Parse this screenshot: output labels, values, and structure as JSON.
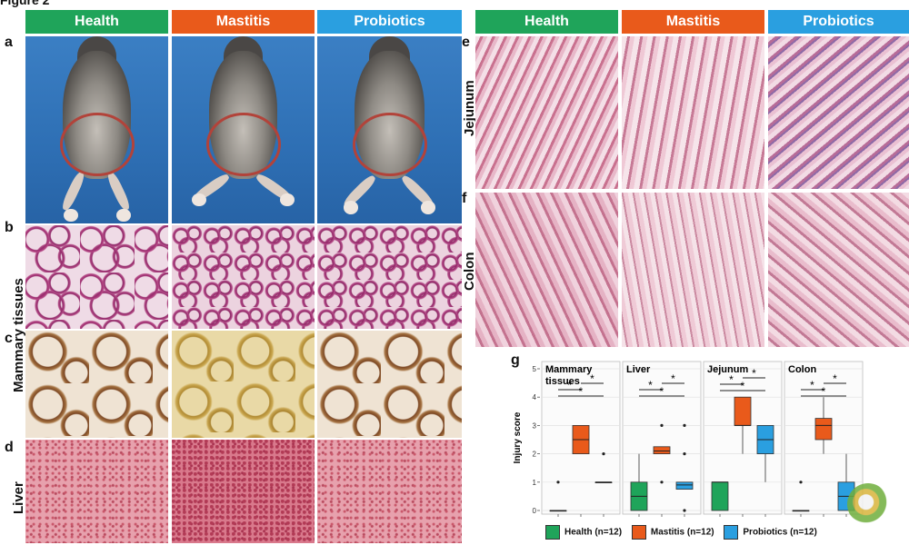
{
  "figure_title": "Figure 2",
  "columns": {
    "health": "Health",
    "mastitis": "Mastitis",
    "probiotics": "Probiotics"
  },
  "colors": {
    "health": "#1fa45a",
    "mastitis": "#e95a1b",
    "probiotics": "#2a9fe0"
  },
  "panels": {
    "a": "a",
    "b": "b",
    "c": "c",
    "d": "d",
    "e": "e",
    "f": "f",
    "g": "g"
  },
  "row_labels": {
    "mammary": "Mammary tissues",
    "liver": "Liver",
    "jejunum": "Jejunum",
    "colon": "Colon"
  },
  "chart_data": {
    "type": "box",
    "ylabel": "Injury score",
    "ylim": [
      0,
      5
    ],
    "yticks": [
      0,
      1,
      2,
      3,
      4,
      5
    ],
    "grid": true,
    "legend_position": "bottom",
    "legend": [
      "Health (n=12)",
      "Mastitis (n=12)",
      "Probiotics (n=12)"
    ],
    "significance_mark": "*",
    "facets": [
      {
        "title": "Mammary\ntissues",
        "groups": [
          {
            "group": "Health",
            "min": 0,
            "q1": 0,
            "median": 0,
            "q3": 0,
            "max": 0,
            "outliers": [
              1
            ]
          },
          {
            "group": "Mastitis",
            "min": 2,
            "q1": 2,
            "median": 2.5,
            "q3": 3,
            "max": 3,
            "outliers": []
          },
          {
            "group": "Probiotics",
            "min": 1,
            "q1": 1,
            "median": 1,
            "q3": 1,
            "max": 1,
            "outliers": [
              2
            ]
          }
        ],
        "significance": [
          [
            "Health",
            "Mastitis"
          ],
          [
            "Health",
            "Probiotics"
          ],
          [
            "Mastitis",
            "Probiotics"
          ]
        ]
      },
      {
        "title": "Liver",
        "groups": [
          {
            "group": "Health",
            "min": 0,
            "q1": 0,
            "median": 0.5,
            "q3": 1,
            "max": 2,
            "outliers": []
          },
          {
            "group": "Mastitis",
            "min": 2,
            "q1": 2,
            "median": 2.1,
            "q3": 2.25,
            "max": 2.25,
            "outliers": [
              1,
              3
            ]
          },
          {
            "group": "Probiotics",
            "min": 0.75,
            "q1": 0.75,
            "median": 0.9,
            "q3": 1,
            "max": 1,
            "outliers": [
              0,
              2,
              3
            ]
          }
        ],
        "significance": [
          [
            "Health",
            "Mastitis"
          ],
          [
            "Health",
            "Probiotics"
          ],
          [
            "Mastitis",
            "Probiotics"
          ]
        ]
      },
      {
        "title": "Jejunum",
        "groups": [
          {
            "group": "Health",
            "min": 0,
            "q1": 0,
            "median": 1,
            "q3": 1,
            "max": 1,
            "outliers": []
          },
          {
            "group": "Mastitis",
            "min": 2,
            "q1": 3,
            "median": 3,
            "q3": 4,
            "max": 4,
            "outliers": []
          },
          {
            "group": "Probiotics",
            "min": 1,
            "q1": 2,
            "median": 2.5,
            "q3": 3,
            "max": 3,
            "outliers": []
          }
        ],
        "significance": [
          [
            "Health",
            "Mastitis"
          ],
          [
            "Health",
            "Probiotics"
          ],
          [
            "Mastitis",
            "Probiotics"
          ]
        ]
      },
      {
        "title": "Colon",
        "groups": [
          {
            "group": "Health",
            "min": 0,
            "q1": 0,
            "median": 0,
            "q3": 0,
            "max": 0,
            "outliers": [
              1
            ]
          },
          {
            "group": "Mastitis",
            "min": 2,
            "q1": 2.5,
            "median": 3,
            "q3": 3.25,
            "max": 4,
            "outliers": []
          },
          {
            "group": "Probiotics",
            "min": 0,
            "q1": 0,
            "median": 0.5,
            "q3": 1,
            "max": 2,
            "outliers": []
          }
        ],
        "significance": [
          [
            "Health",
            "Mastitis"
          ],
          [
            "Health",
            "Probiotics"
          ],
          [
            "Mastitis",
            "Probiotics"
          ]
        ]
      }
    ]
  }
}
